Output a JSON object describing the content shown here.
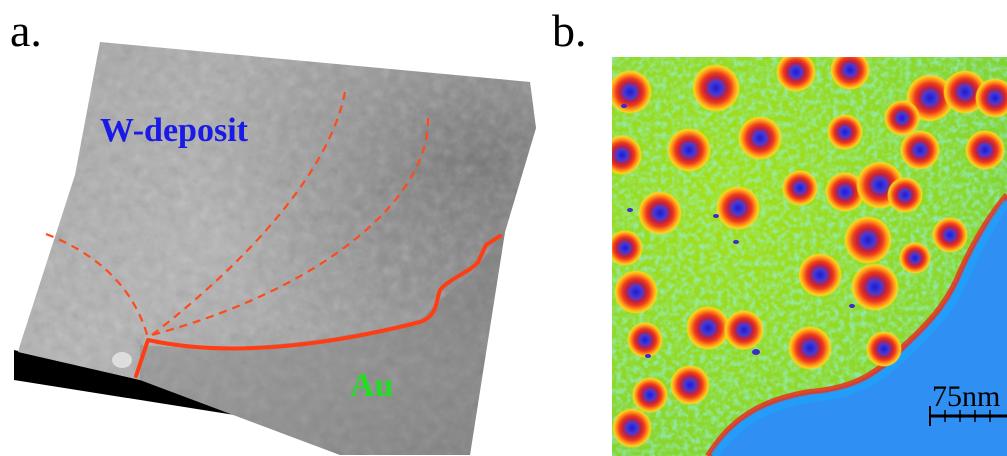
{
  "panels": [
    {
      "id": "a",
      "label": "a.",
      "annotations": {
        "deposit": "W-deposit",
        "substrate": "Au"
      },
      "colors": {
        "boundary": "#ff4a1c",
        "deposit_text": "#1a1ae6",
        "substrate_text": "#22dd22"
      }
    },
    {
      "id": "b",
      "label": "b.",
      "scale_bar": "75nm",
      "colors": {
        "background": "#8ed82a",
        "particle_rim": "#e8321e",
        "particle_core": "#3a2ad0",
        "substrate": "#2a8cf0"
      }
    }
  ]
}
